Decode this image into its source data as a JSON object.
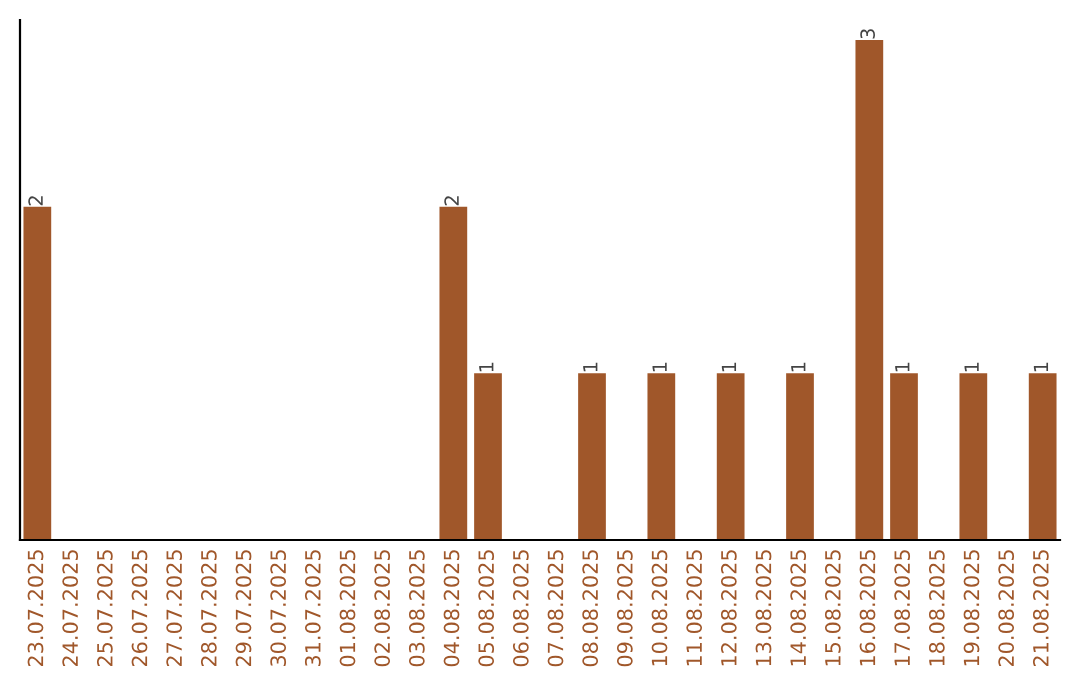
{
  "chart_data": {
    "type": "bar",
    "categories": [
      "23.07.2025",
      "24.07.2025",
      "25.07.2025",
      "26.07.2025",
      "27.07.2025",
      "28.07.2025",
      "29.07.2025",
      "30.07.2025",
      "31.07.2025",
      "01.08.2025",
      "02.08.2025",
      "03.08.2025",
      "04.08.2025",
      "05.08.2025",
      "06.08.2025",
      "07.08.2025",
      "08.08.2025",
      "09.08.2025",
      "10.08.2025",
      "11.08.2025",
      "12.08.2025",
      "13.08.2025",
      "14.08.2025",
      "15.08.2025",
      "16.08.2025",
      "17.08.2025",
      "18.08.2025",
      "19.08.2025",
      "20.08.2025",
      "21.08.2025"
    ],
    "values": [
      2,
      0,
      0,
      0,
      0,
      0,
      0,
      0,
      0,
      0,
      0,
      0,
      2,
      1,
      0,
      0,
      1,
      0,
      1,
      0,
      1,
      0,
      1,
      0,
      3,
      1,
      0,
      1,
      0,
      1
    ],
    "value_labels": [
      "2",
      null,
      null,
      null,
      null,
      null,
      null,
      null,
      null,
      null,
      null,
      null,
      "2",
      "1",
      null,
      null,
      "1",
      null,
      "1",
      null,
      "1",
      null,
      "1",
      null,
      "3",
      "1",
      null,
      "1",
      null,
      "1"
    ],
    "color": "#a0572a",
    "tick_labels": "x",
    "grid": false,
    "legend": false
  }
}
